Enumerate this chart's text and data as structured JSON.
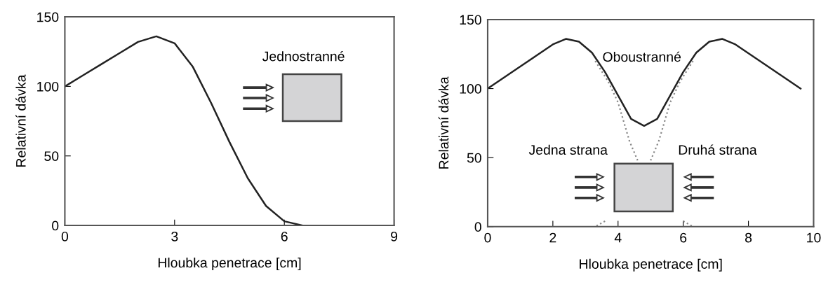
{
  "chart_data": [
    {
      "type": "line",
      "xlabel": "Hloubka penetrace [cm]",
      "ylabel": "Relativní dávka",
      "xlim": [
        0,
        9
      ],
      "xticks": [
        0,
        3,
        6,
        9
      ],
      "ylim": [
        0,
        150
      ],
      "yticks": [
        0,
        50,
        100,
        150
      ],
      "grid": false,
      "annotations": [
        "Jednostranné"
      ],
      "series": [
        {
          "color": "#222222",
          "line_style": "solid",
          "x": [
            0,
            0.5,
            1,
            1.5,
            2,
            2.5,
            3,
            3.5,
            4,
            4.5,
            5,
            5.5,
            6,
            6.5
          ],
          "values": [
            100,
            108,
            116,
            124,
            132,
            136,
            131,
            114,
            88,
            60,
            34,
            14,
            3,
            0
          ]
        }
      ]
    },
    {
      "type": "line",
      "xlabel": "Hloubka penetrace [cm]",
      "ylabel": "Relativní dávka",
      "xlim": [
        0,
        10
      ],
      "xticks": [
        0,
        2,
        4,
        6,
        8,
        10
      ],
      "ylim": [
        0,
        150
      ],
      "yticks": [
        0,
        50,
        100,
        150
      ],
      "grid": false,
      "annotations": [
        "Oboustranné",
        "Jedna strana",
        "Druhá strana"
      ],
      "series": [
        {
          "color": "#222222",
          "line_style": "solid",
          "x": [
            0,
            0.5,
            1,
            1.5,
            2,
            2.4,
            2.8,
            3.2,
            3.6,
            4.0,
            4.4,
            4.8,
            5.2,
            5.6,
            6.0,
            6.4,
            6.8,
            7.2,
            7.6,
            8.1,
            8.6,
            9.1,
            9.6
          ],
          "values": [
            100,
            108,
            116,
            124,
            132,
            136,
            134,
            126,
            112,
            95,
            78,
            73,
            78,
            95,
            112,
            126,
            134,
            136,
            132,
            124,
            116,
            108,
            100
          ]
        },
        {
          "color": "#888888",
          "line_style": "dotted",
          "x": [
            3.3,
            3.7,
            4.0,
            4.35,
            4.6,
            5.0,
            5.5,
            6.0,
            6.3
          ],
          "values": [
            120,
            105,
            90,
            62,
            48,
            null,
            null,
            4,
            0
          ]
        },
        {
          "color": "#888888",
          "line_style": "dotted",
          "x": [
            6.3,
            5.9,
            5.6,
            5.25,
            5.0,
            4.6,
            4.1,
            3.6,
            3.3
          ],
          "values": [
            120,
            105,
            90,
            62,
            48,
            null,
            null,
            4,
            0
          ]
        }
      ]
    }
  ]
}
